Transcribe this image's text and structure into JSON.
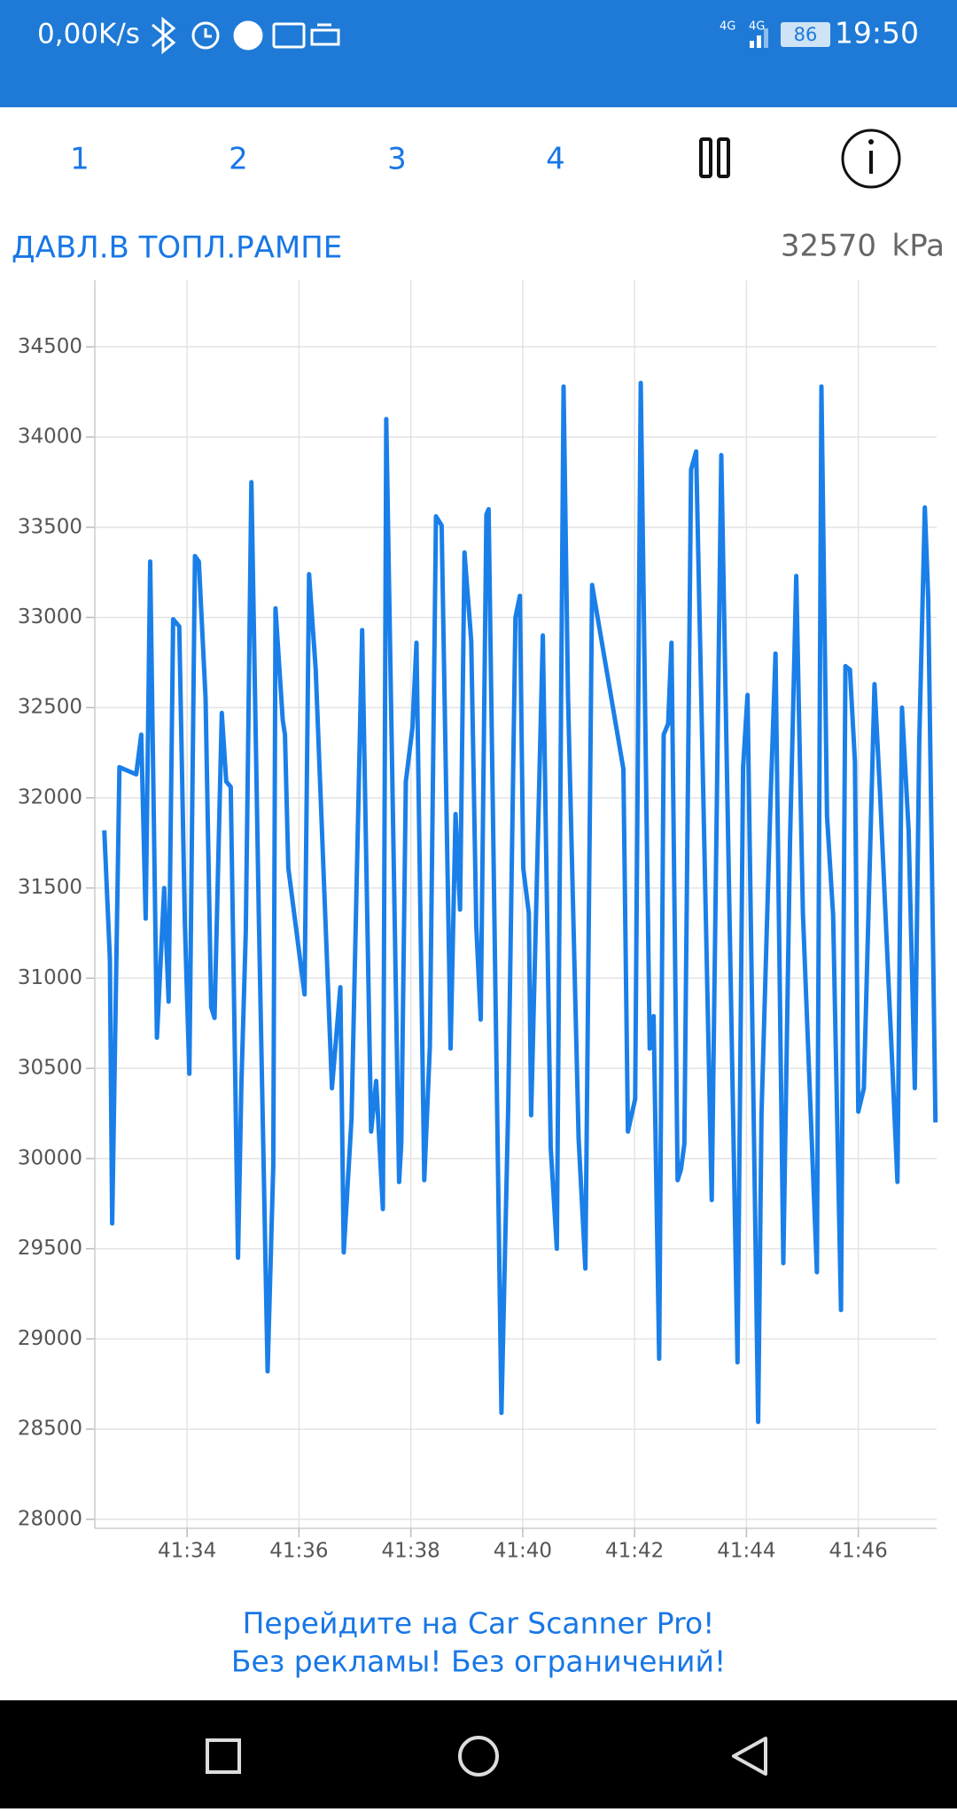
{
  "status_bar": {
    "net_speed": "0,00K/s",
    "network": "4G",
    "network_2": "4G",
    "battery": "86",
    "time": "19:50"
  },
  "tabs": [
    "1",
    "2",
    "3",
    "4"
  ],
  "chart_data": {
    "type": "line",
    "title": "ДАВЛ.В ТОПЛ.РАМПЕ",
    "current_value": 32570,
    "unit": "kPa",
    "color": "#1a7fe8",
    "x": [
      2492.52,
      2492.62,
      2492.66,
      2492.79,
      2493.09,
      2493.18,
      2493.26,
      2493.34,
      2493.46,
      2493.59,
      2493.67,
      2493.75,
      2493.86,
      2493.96,
      2494.04,
      2494.14,
      2494.21,
      2494.33,
      2494.43,
      2494.49,
      2494.62,
      2494.7,
      2494.78,
      2494.91,
      2494.97,
      2495.05,
      2495.15,
      2495.28,
      2495.44,
      2495.54,
      2495.58,
      2495.71,
      2495.75,
      2495.81,
      2496.1,
      2496.18,
      2496.3,
      2496.59,
      2496.74,
      2496.8,
      2496.94,
      2497.13,
      2497.29,
      2497.38,
      2497.5,
      2497.56,
      2497.79,
      2497.83,
      2497.91,
      2498.03,
      2498.1,
      2498.24,
      2498.34,
      2498.45,
      2498.55,
      2498.71,
      2498.8,
      2498.88,
      2498.96,
      2499.08,
      2499.17,
      2499.25,
      2499.35,
      2499.39,
      2499.62,
      2499.74,
      2499.87,
      2499.95,
      2500.01,
      2500.11,
      2500.15,
      2500.36,
      2500.5,
      2500.61,
      2500.73,
      2500.81,
      2501.0,
      2501.12,
      2501.24,
      2501.8,
      2501.88,
      2502.01,
      2502.11,
      2502.27,
      2502.34,
      2502.44,
      2502.52,
      2502.6,
      2502.66,
      2502.77,
      2502.83,
      2502.89,
      2503.01,
      2503.1,
      2503.38,
      2503.55,
      2503.84,
      2503.94,
      2504.02,
      2504.21,
      2504.27,
      2504.43,
      2504.52,
      2504.66,
      2504.78,
      2504.89,
      2505.01,
      2505.26,
      2505.34,
      2505.44,
      2505.55,
      2505.69,
      2505.77,
      2505.85,
      2505.94,
      2506.0,
      2506.1,
      2506.29,
      2506.39,
      2506.6,
      2506.7,
      2506.78,
      2506.9,
      2507.01,
      2507.09,
      2507.19,
      2507.25,
      2507.38
    ],
    "values": [
      31820,
      31110,
      29640,
      32170,
      32130,
      32350,
      31330,
      33310,
      30670,
      31500,
      30870,
      32990,
      32950,
      31310,
      30470,
      33340,
      33310,
      32550,
      30840,
      30780,
      32470,
      32090,
      32060,
      29450,
      30410,
      31260,
      33750,
      31370,
      28820,
      29960,
      33050,
      32430,
      32350,
      31610,
      30910,
      33240,
      32710,
      30390,
      30950,
      29480,
      30220,
      32930,
      30150,
      30430,
      29720,
      34100,
      29870,
      30090,
      32090,
      32390,
      32860,
      29880,
      30620,
      33560,
      33510,
      30610,
      31910,
      31380,
      33360,
      32870,
      31290,
      30770,
      33570,
      33600,
      28590,
      30280,
      33000,
      33120,
      31610,
      31360,
      30240,
      32900,
      30060,
      29500,
      34280,
      32570,
      30110,
      29390,
      33180,
      32160,
      30150,
      30330,
      34300,
      30610,
      30790,
      28890,
      32350,
      32410,
      32860,
      29880,
      29940,
      30080,
      33820,
      33920,
      29770,
      33900,
      28870,
      32170,
      32570,
      28540,
      30250,
      31980,
      32800,
      29420,
      31770,
      33230,
      31360,
      29370,
      34280,
      31900,
      31350,
      29160,
      32730,
      32710,
      32200,
      30260,
      30390,
      32630,
      32020,
      30570,
      29870,
      32500,
      31820,
      30390,
      32310,
      33610,
      33110,
      30200
    ],
    "xlim": [
      2492.35,
      2507.4
    ],
    "ylim": [
      27950,
      34870
    ],
    "xticks": [
      {
        "value": 2494,
        "label": "41:34"
      },
      {
        "value": 2496,
        "label": "41:36"
      },
      {
        "value": 2498,
        "label": "41:38"
      },
      {
        "value": 2500,
        "label": "41:40"
      },
      {
        "value": 2502,
        "label": "41:42"
      },
      {
        "value": 2504,
        "label": "41:44"
      },
      {
        "value": 2506,
        "label": "41:46"
      }
    ],
    "yticks": [
      28000,
      28500,
      29000,
      29500,
      30000,
      30500,
      31000,
      31500,
      32000,
      32500,
      33000,
      33500,
      34000,
      34500
    ],
    "grid": true
  },
  "ad": [
    "Перейдите на Car Scanner Pro!",
    "Без рекламы! Без ограничений!"
  ]
}
